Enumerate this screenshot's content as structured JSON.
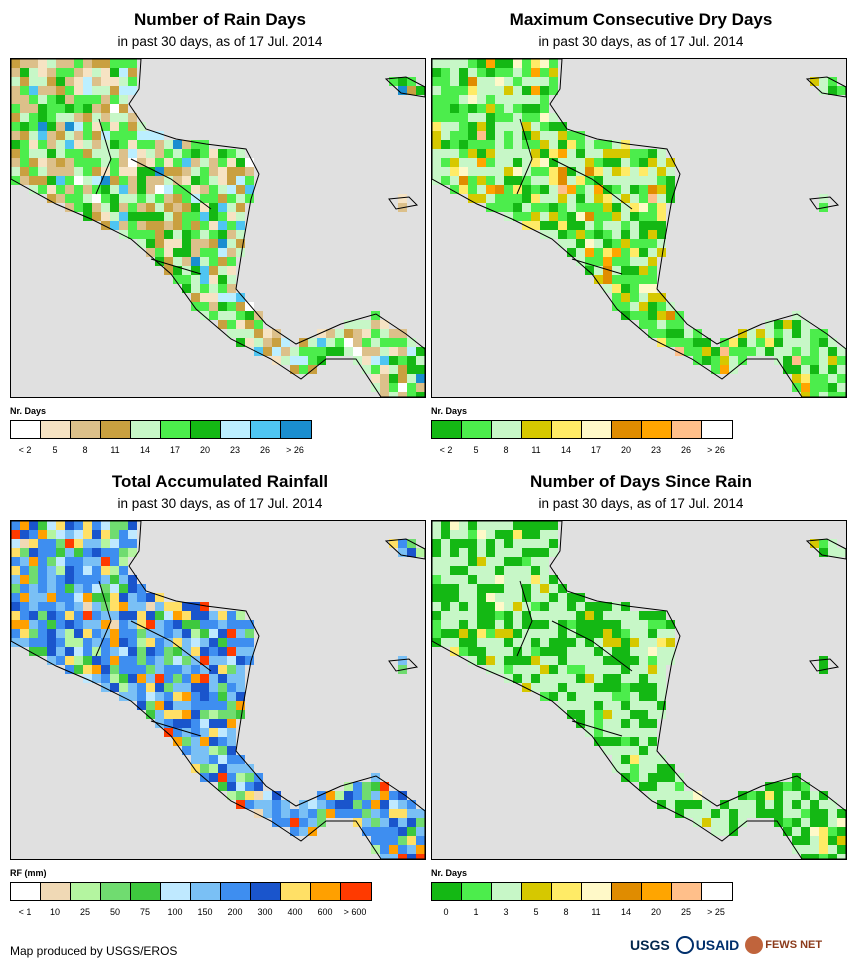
{
  "panels": [
    {
      "title": "Number of Rain Days",
      "subtitle": "in past 30 days, as of 17 Jul. 2014",
      "legend_title": "Nr. Days",
      "legend_colors": [
        "#ffffff",
        "#f6e3c3",
        "#dcc08a",
        "#c9a040",
        "#c7f7c7",
        "#4ced4c",
        "#14b814",
        "#bcefff",
        "#4fc5f2",
        "#1a8ed0"
      ],
      "legend_ticks": [
        "< 2",
        "5",
        "8",
        "11",
        "14",
        "17",
        "20",
        "23",
        "26",
        "> 26"
      ],
      "palette_weights": [
        0.02,
        0.08,
        0.18,
        0.14,
        0.18,
        0.2,
        0.12,
        0.04,
        0.03,
        0.01
      ]
    },
    {
      "title": "Maximum Consecutive Dry Days",
      "subtitle": "in past 30 days, as of 17 Jul. 2014",
      "legend_title": "Nr. Days",
      "legend_colors": [
        "#14b814",
        "#4ced4c",
        "#c7f7c7",
        "#d6c800",
        "#ffeb66",
        "#fff9c8",
        "#e08c00",
        "#ffa500",
        "#ffbf8a",
        "#ffffff"
      ],
      "legend_ticks": [
        "< 2",
        "5",
        "8",
        "11",
        "14",
        "17",
        "20",
        "23",
        "26",
        "> 26"
      ],
      "palette_weights": [
        0.18,
        0.3,
        0.28,
        0.1,
        0.06,
        0.03,
        0.02,
        0.02,
        0.01,
        0.0
      ]
    },
    {
      "title": "Total Accumulated Rainfall",
      "subtitle": "in past 30 days, as of 17 Jul. 2014",
      "legend_title": "RF (mm)",
      "legend_colors": [
        "#ffffff",
        "#f0d9b5",
        "#b4f5a0",
        "#70dc70",
        "#3ec83e",
        "#bfe9ff",
        "#7ac0f5",
        "#3e8ef0",
        "#1a55cc",
        "#ffe066",
        "#ffa000",
        "#ff3a00"
      ],
      "legend_ticks": [
        "< 1",
        "10",
        "25",
        "50",
        "75",
        "100",
        "150",
        "200",
        "300",
        "400",
        "600",
        "> 600"
      ],
      "palette_weights": [
        0.0,
        0.01,
        0.04,
        0.1,
        0.06,
        0.05,
        0.18,
        0.28,
        0.12,
        0.07,
        0.06,
        0.03
      ]
    },
    {
      "title": "Number of Days Since Rain",
      "subtitle": "in past 30 days, as of 17 Jul. 2014",
      "legend_title": "Nr. Days",
      "legend_colors": [
        "#14b814",
        "#4ced4c",
        "#c7f7c7",
        "#d6c800",
        "#ffeb66",
        "#fff9c8",
        "#e08c00",
        "#ffa500",
        "#ffbf8a",
        "#ffffff"
      ],
      "legend_ticks": [
        "0",
        "1",
        "3",
        "5",
        "8",
        "11",
        "14",
        "20",
        "25",
        "> 25"
      ],
      "palette_weights": [
        0.35,
        0.1,
        0.48,
        0.04,
        0.02,
        0.01,
        0.0,
        0.0,
        0.0,
        0.0
      ]
    }
  ],
  "credit": "Map produced by USGS/EROS",
  "logos": {
    "usgs": "USGS",
    "usaid": "USAID",
    "fews": "FEWS NET"
  }
}
